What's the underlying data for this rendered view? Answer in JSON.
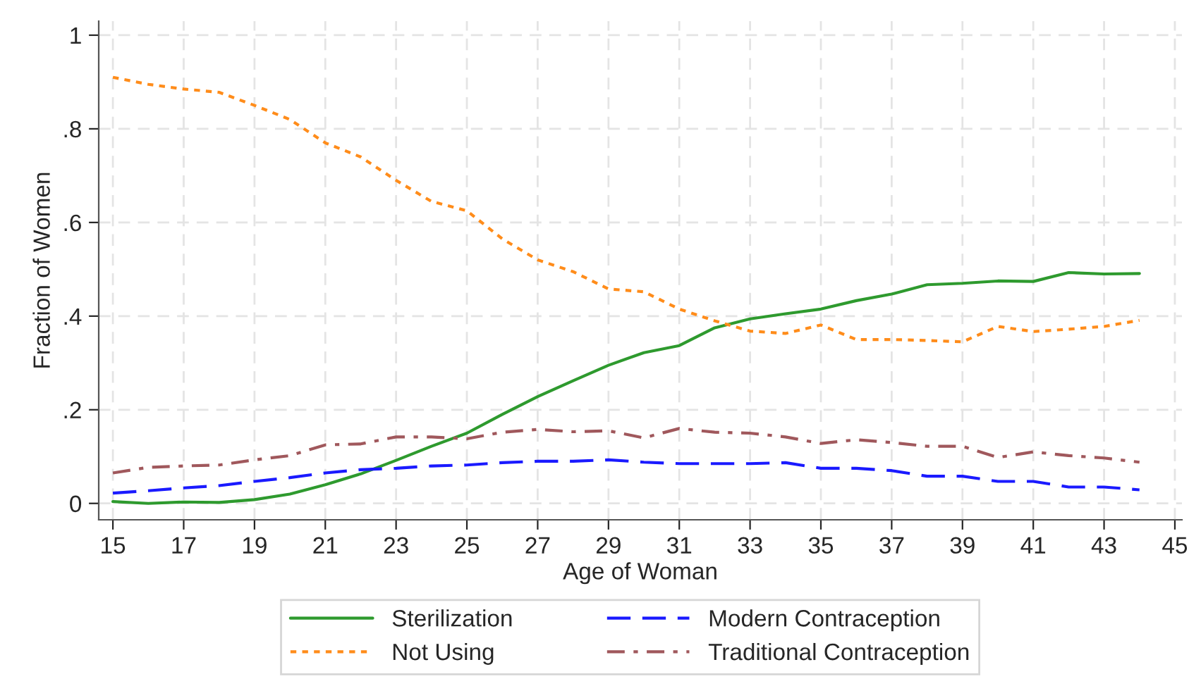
{
  "chart_data": {
    "type": "line",
    "xlabel": "Age of Woman",
    "ylabel": "Fraction of Women",
    "x": [
      15,
      16,
      17,
      18,
      19,
      20,
      21,
      22,
      23,
      24,
      25,
      26,
      27,
      28,
      29,
      30,
      31,
      32,
      33,
      34,
      35,
      36,
      37,
      38,
      39,
      40,
      41,
      42,
      43,
      44
    ],
    "series": [
      {
        "name": "Sterilization",
        "color": "#2e9a2e",
        "line_style": "solid",
        "values": [
          0.004,
          0.0,
          0.003,
          0.002,
          0.008,
          0.02,
          0.04,
          0.063,
          0.092,
          0.122,
          0.15,
          0.19,
          0.228,
          0.262,
          0.295,
          0.322,
          0.337,
          0.375,
          0.394,
          0.405,
          0.415,
          0.433,
          0.447,
          0.467,
          0.47,
          0.475,
          0.474,
          0.493,
          0.49,
          0.491
        ]
      },
      {
        "name": "Not Using",
        "color": "#ff8c1a",
        "line_style": "dotted",
        "values": [
          0.91,
          0.895,
          0.885,
          0.878,
          0.85,
          0.82,
          0.77,
          0.74,
          0.69,
          0.645,
          0.625,
          0.565,
          0.52,
          0.495,
          0.458,
          0.452,
          0.415,
          0.39,
          0.368,
          0.363,
          0.381,
          0.35,
          0.35,
          0.348,
          0.345,
          0.378,
          0.367,
          0.372,
          0.378,
          0.391
        ]
      },
      {
        "name": "Modern Contraception",
        "color": "#1a1aff",
        "line_style": "dashed",
        "values": [
          0.022,
          0.027,
          0.033,
          0.038,
          0.047,
          0.055,
          0.065,
          0.072,
          0.075,
          0.08,
          0.082,
          0.087,
          0.09,
          0.09,
          0.093,
          0.088,
          0.085,
          0.085,
          0.085,
          0.087,
          0.075,
          0.075,
          0.07,
          0.058,
          0.058,
          0.047,
          0.047,
          0.035,
          0.035,
          0.029
        ]
      },
      {
        "name": "Traditional Contraception",
        "color": "#a0585c",
        "line_style": "dashdot",
        "values": [
          0.065,
          0.077,
          0.08,
          0.082,
          0.093,
          0.102,
          0.125,
          0.127,
          0.142,
          0.142,
          0.138,
          0.152,
          0.158,
          0.153,
          0.155,
          0.14,
          0.16,
          0.152,
          0.15,
          0.142,
          0.128,
          0.136,
          0.13,
          0.122,
          0.122,
          0.098,
          0.11,
          0.102,
          0.097,
          0.088
        ]
      }
    ],
    "xlim": [
      14.6,
      45.2
    ],
    "ylim": [
      -0.035,
      1.03
    ],
    "xticks": [
      15,
      17,
      19,
      21,
      23,
      25,
      27,
      29,
      31,
      33,
      35,
      37,
      39,
      41,
      43,
      45
    ],
    "yticks": [
      {
        "value": 0,
        "label": "0"
      },
      {
        "value": 0.2,
        "label": ".2"
      },
      {
        "value": 0.4,
        "label": ".4"
      },
      {
        "value": 0.6,
        "label": ".6"
      },
      {
        "value": 0.8,
        "label": ".8"
      },
      {
        "value": 1,
        "label": "1"
      }
    ],
    "grid": true,
    "legend": "bottom"
  }
}
